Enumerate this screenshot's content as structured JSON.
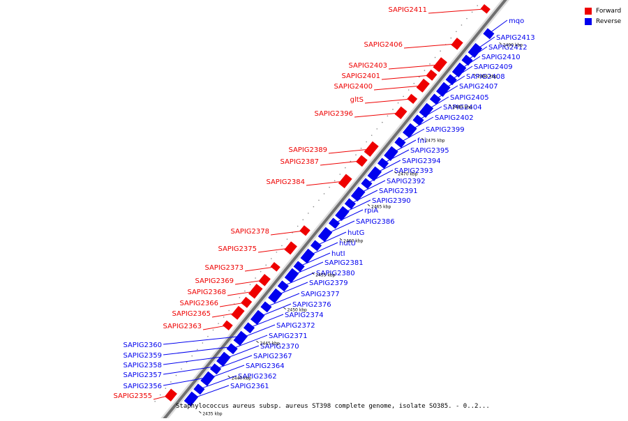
{
  "legend": {
    "items": [
      {
        "label": "Forward",
        "color": "#ee0000"
      },
      {
        "label": "Reverse",
        "color": "#0000ee"
      }
    ]
  },
  "caption": "Staphylococcus aureus subsp. aureus ST398 complete genome, isolate SO385. - 0..2...",
  "colors": {
    "forward": "#ee0000",
    "reverse": "#0000ee",
    "backbone": "#707070"
  },
  "scale_ticks": [
    "2435 kbp",
    "2440 kbp",
    "2445 kbp",
    "2450 kbp",
    "2455 kbp",
    "2460 kbp",
    "2465 kbp",
    "2470 kbp",
    "2475 kbp",
    "2480 kbp",
    "2485 kbp",
    "2490 kbp"
  ],
  "forward_genes": [
    "SAPIG2411",
    "SAPIG2406",
    "SAPIG2403",
    "SAPIG2401",
    "SAPIG2400",
    "gltS",
    "SAPIG2396",
    "SAPIG2389",
    "SAPIG2387",
    "SAPIG2384",
    "SAPIG2378",
    "SAPIG2375",
    "SAPIG2373",
    "SAPIG2369",
    "SAPIG2368",
    "SAPIG2366",
    "SAPIG2365",
    "SAPIG2363",
    "SAPIG2355"
  ],
  "reverse_genes_left": [
    "SAPIG2360",
    "SAPIG2359",
    "SAPIG2358",
    "SAPIG2357",
    "SAPIG2356"
  ],
  "reverse_genes_right": [
    "mqo",
    "SAPIG2413",
    "SAPIG2412",
    "SAPIG2410",
    "SAPIG2409",
    "SAPIG2408",
    "SAPIG2407",
    "SAPIG2405",
    "SAPIG2404",
    "SAPIG2402",
    "SAPIG2399",
    "fni",
    "SAPIG2395",
    "SAPIG2394",
    "SAPIG2393",
    "SAPIG2392",
    "SAPIG2391",
    "SAPIG2390",
    "rpiA",
    "SAPIG2386",
    "hutG",
    "hutU",
    "hutI",
    "SAPIG2381",
    "SAPIG2380",
    "SAPIG2379",
    "SAPIG2377",
    "SAPIG2376",
    "SAPIG2374",
    "SAPIG2372",
    "SAPIG2371",
    "SAPIG2370",
    "SAPIG2367",
    "SAPIG2364",
    "SAPIG2362",
    "SAPIG2361"
  ]
}
